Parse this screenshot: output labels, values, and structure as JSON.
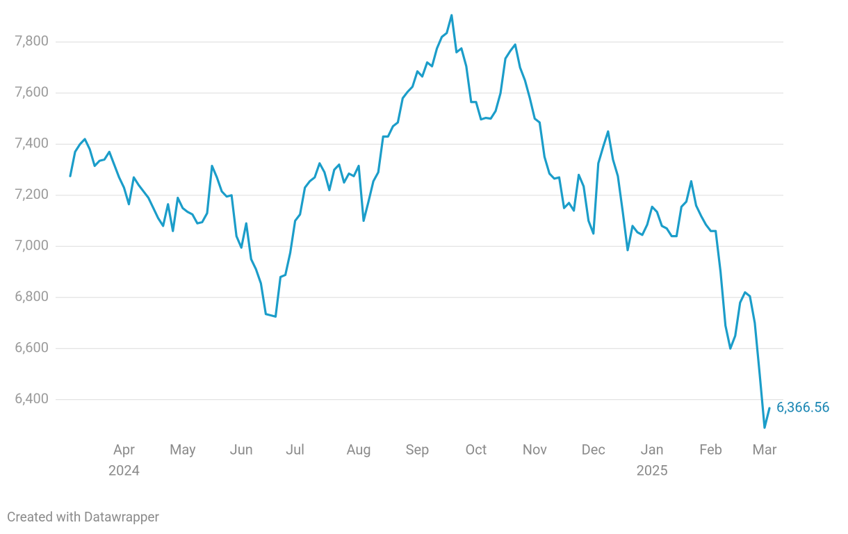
{
  "chart_data": {
    "type": "line",
    "credit": "Created with Datawrapper",
    "categories": [
      null,
      null,
      null,
      null,
      null,
      null,
      null,
      null,
      null,
      null,
      null,
      "Apr",
      null,
      null,
      null,
      null,
      null,
      null,
      null,
      null,
      null,
      null,
      null,
      "May",
      null,
      null,
      null,
      null,
      null,
      null,
      null,
      null,
      null,
      null,
      null,
      "Jun",
      null,
      null,
      null,
      null,
      null,
      null,
      null,
      null,
      null,
      null,
      "Jul",
      null,
      null,
      null,
      null,
      null,
      null,
      null,
      null,
      null,
      null,
      null,
      null,
      "Aug",
      null,
      null,
      null,
      null,
      null,
      null,
      null,
      null,
      null,
      null,
      null,
      "Sep",
      null,
      null,
      null,
      null,
      null,
      null,
      null,
      null,
      null,
      null,
      null,
      "Oct",
      null,
      null,
      null,
      null,
      null,
      null,
      null,
      null,
      null,
      null,
      null,
      "Nov",
      null,
      null,
      null,
      null,
      null,
      null,
      null,
      null,
      null,
      null,
      null,
      "Dec",
      null,
      null,
      null,
      null,
      null,
      null,
      null,
      null,
      null,
      null,
      null,
      "Jan",
      null,
      null,
      null,
      null,
      null,
      null,
      null,
      null,
      null,
      null,
      null,
      "Feb",
      null,
      null,
      null,
      null,
      null,
      null,
      null,
      null,
      null,
      null,
      "Mar",
      null
    ],
    "category_years": [
      null,
      null,
      null,
      null,
      null,
      null,
      null,
      null,
      null,
      null,
      null,
      "2024",
      null,
      null,
      null,
      null,
      null,
      null,
      null,
      null,
      null,
      null,
      null,
      null,
      null,
      null,
      null,
      null,
      null,
      null,
      null,
      null,
      null,
      null,
      null,
      null,
      null,
      null,
      null,
      null,
      null,
      null,
      null,
      null,
      null,
      null,
      null,
      null,
      null,
      null,
      null,
      null,
      null,
      null,
      null,
      null,
      null,
      null,
      null,
      null,
      null,
      null,
      null,
      null,
      null,
      null,
      null,
      null,
      null,
      null,
      null,
      null,
      null,
      null,
      null,
      null,
      null,
      null,
      null,
      null,
      null,
      null,
      null,
      null,
      null,
      null,
      null,
      null,
      null,
      null,
      null,
      null,
      null,
      null,
      null,
      null,
      null,
      null,
      null,
      null,
      null,
      null,
      null,
      null,
      null,
      null,
      null,
      null,
      null,
      null,
      null,
      null,
      null,
      null,
      null,
      null,
      null,
      null,
      null,
      "2025",
      null,
      null,
      null,
      null,
      null,
      null,
      null,
      null,
      null,
      null,
      null,
      null,
      null,
      null,
      null,
      null,
      null,
      null,
      null,
      null,
      null,
      null,
      null,
      null
    ],
    "series": [
      {
        "color": "#1b9dc9",
        "values": [
          7275,
          7370,
          7400,
          7420,
          7380,
          7315,
          7335,
          7340,
          7370,
          7320,
          7270,
          7230,
          7165,
          7270,
          7240,
          7215,
          7190,
          7150,
          7110,
          7080,
          7165,
          7060,
          7190,
          7150,
          7135,
          7125,
          7090,
          7095,
          7130,
          7315,
          7270,
          7215,
          7195,
          7200,
          7040,
          6995,
          7090,
          6950,
          6910,
          6855,
          6735,
          6730,
          6725,
          6880,
          6888,
          6975,
          7100,
          7125,
          7230,
          7255,
          7270,
          7325,
          7290,
          7220,
          7300,
          7320,
          7250,
          7285,
          7275,
          7315,
          7100,
          7175,
          7255,
          7290,
          7430,
          7430,
          7470,
          7485,
          7580,
          7605,
          7625,
          7685,
          7665,
          7720,
          7705,
          7775,
          7820,
          7835,
          7905,
          7760,
          7775,
          7705,
          7565,
          7565,
          7497,
          7503,
          7500,
          7530,
          7600,
          7735,
          7765,
          7790,
          7700,
          7650,
          7580,
          7500,
          7485,
          7350,
          7285,
          7265,
          7270,
          7150,
          7170,
          7140,
          7280,
          7235,
          7100,
          7050,
          7325,
          7390,
          7450,
          7340,
          7275,
          7135,
          6985,
          7080,
          7055,
          7045,
          7085,
          7155,
          7135,
          7080,
          7070,
          7040,
          7040,
          7155,
          7175,
          7255,
          7160,
          7120,
          7085,
          7060,
          7060,
          6900,
          6690,
          6600,
          6650,
          6780,
          6820,
          6805,
          6700,
          6500,
          6290,
          6366.56
        ],
        "value_labels": [
          null,
          null,
          null,
          null,
          null,
          null,
          null,
          null,
          null,
          null,
          null,
          null,
          null,
          null,
          null,
          null,
          null,
          null,
          null,
          null,
          null,
          null,
          null,
          null,
          null,
          null,
          null,
          null,
          null,
          null,
          null,
          null,
          null,
          null,
          null,
          null,
          null,
          null,
          null,
          null,
          null,
          null,
          null,
          null,
          null,
          null,
          null,
          null,
          null,
          null,
          null,
          null,
          null,
          null,
          null,
          null,
          null,
          null,
          null,
          null,
          null,
          null,
          null,
          null,
          null,
          null,
          null,
          null,
          null,
          null,
          null,
          null,
          null,
          null,
          null,
          null,
          null,
          null,
          null,
          null,
          null,
          null,
          null,
          null,
          null,
          null,
          null,
          null,
          null,
          null,
          null,
          null,
          null,
          null,
          null,
          null,
          null,
          null,
          null,
          null,
          null,
          null,
          null,
          null,
          null,
          null,
          null,
          null,
          null,
          null,
          null,
          null,
          null,
          null,
          null,
          null,
          null,
          null,
          null,
          null,
          null,
          null,
          null,
          null,
          null,
          null,
          null,
          null,
          null,
          null,
          null,
          null,
          null,
          null,
          null,
          null,
          null,
          null,
          null,
          null,
          null,
          null,
          null,
          "6,366.56"
        ]
      }
    ],
    "ylim": [
      6255,
      7910
    ],
    "yticks": [
      {
        "value": 6400,
        "label": "6,400"
      },
      {
        "value": 6600,
        "label": "6,600"
      },
      {
        "value": 6800,
        "label": "6,800"
      },
      {
        "value": 7000,
        "label": "7,000"
      },
      {
        "value": 7200,
        "label": "7,200"
      },
      {
        "value": 7400,
        "label": "7,400"
      },
      {
        "value": 7600,
        "label": "7,600"
      },
      {
        "value": 7800,
        "label": "7,800"
      }
    ],
    "grid": true
  }
}
